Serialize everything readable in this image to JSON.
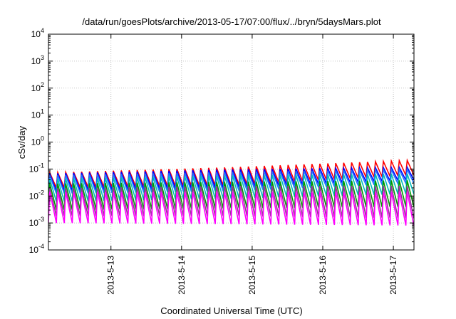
{
  "chart_data": {
    "type": "line",
    "title": "/data/run/goesPlots/archive/2013-05-17/07:00/flux/../bryn/5daysMars.plot",
    "xlabel": "Coordinated Universal Time (UTC)",
    "ylabel": "cSv/day",
    "xlim": [
      "2013-05-12T02:45",
      "2013-05-17T07:00"
    ],
    "ylim": [
      0.0001,
      10000
    ],
    "yscale": "log",
    "grid": true,
    "x_ticks": [
      "2013-5-13",
      "2013-5-14",
      "2013-5-15",
      "2013-5-16",
      "2013-5-17"
    ],
    "y_ticks": [
      {
        "base": "10",
        "exp": "-4"
      },
      {
        "base": "10",
        "exp": "-3"
      },
      {
        "base": "10",
        "exp": "-2"
      },
      {
        "base": "10",
        "exp": "-1"
      },
      {
        "base": "10",
        "exp": "0"
      },
      {
        "base": "10",
        "exp": "1"
      },
      {
        "base": "10",
        "exp": "2"
      },
      {
        "base": "10",
        "exp": "3"
      },
      {
        "base": "10",
        "exp": "4"
      }
    ],
    "period_hours": 2.7,
    "series": [
      {
        "color": "#ff0000",
        "peak": [
          0.075,
          0.12,
          0.22
        ],
        "trough": [
          0.02,
          0.025,
          0.06
        ]
      },
      {
        "color": "#0000ff",
        "peak": [
          0.07,
          0.1,
          0.12
        ],
        "trough": [
          0.015,
          0.02,
          0.04
        ]
      },
      {
        "color": "#2277ff",
        "peak": [
          0.06,
          0.08,
          0.1
        ],
        "trough": [
          0.012,
          0.015,
          0.03
        ]
      },
      {
        "color": "#00bbbb",
        "peak": [
          0.045,
          0.06,
          0.07
        ],
        "trough": [
          0.006,
          0.008,
          0.012
        ]
      },
      {
        "color": "#009900",
        "peak": [
          0.03,
          0.035,
          0.04
        ],
        "trough": [
          0.003,
          0.0035,
          0.004
        ]
      },
      {
        "color": "#993399",
        "peak": [
          0.02,
          0.025,
          0.025
        ],
        "trough": [
          0.0018,
          0.0018,
          0.0015
        ]
      },
      {
        "color": "#ff00ff",
        "peak": [
          0.015,
          0.015,
          0.015
        ],
        "trough": [
          0.001,
          0.0009,
          0.0008
        ]
      }
    ]
  }
}
